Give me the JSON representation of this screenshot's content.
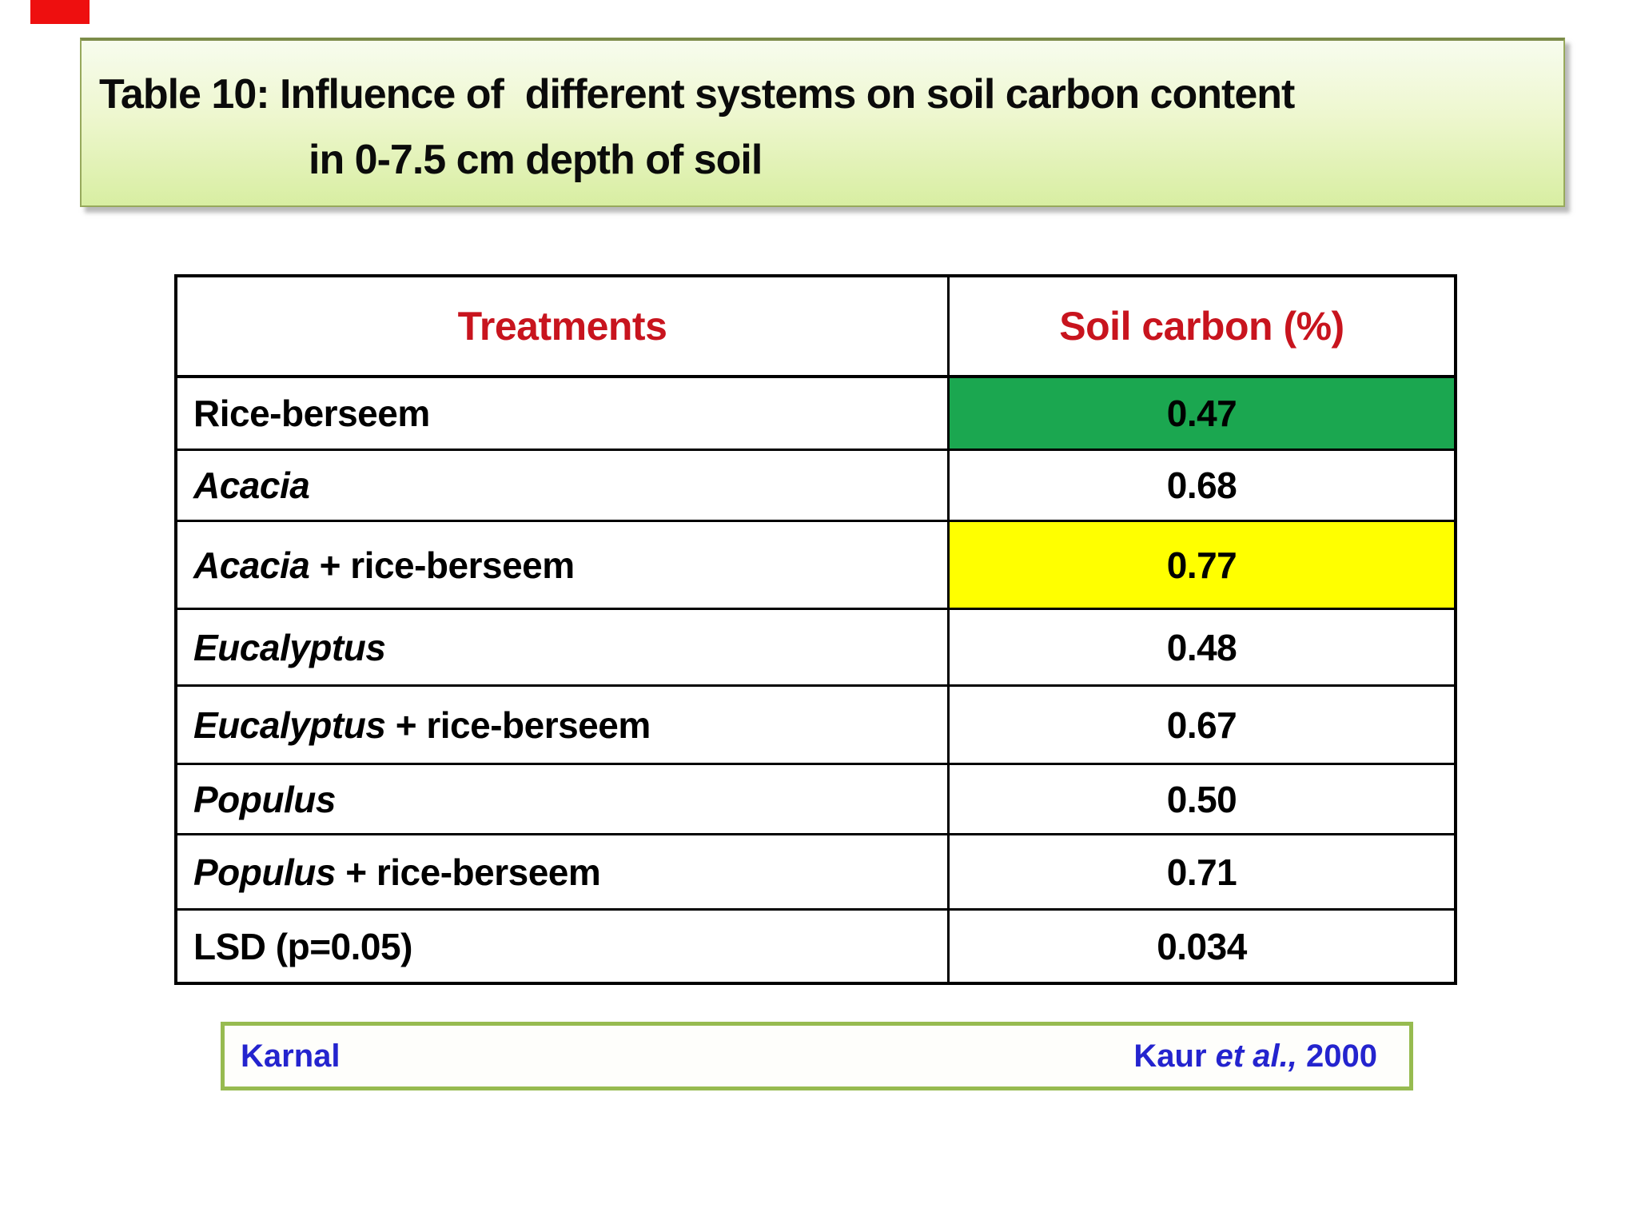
{
  "marker": {
    "present": true
  },
  "title_box": {
    "line1": "Table 10: Influence of  different systems on soil carbon content",
    "line2": "in 0-7.5 cm depth of soil"
  },
  "table": {
    "headers": [
      "Treatments",
      "Soil carbon (%)"
    ],
    "rows": [
      {
        "italic": "",
        "rest": "Rice-berseem",
        "value": "0.47",
        "highlight": "green"
      },
      {
        "italic": "Acacia",
        "rest": "",
        "value": "0.68",
        "highlight": "none"
      },
      {
        "italic": "Acacia",
        "rest": " + rice-berseem",
        "value": "0.77",
        "highlight": "yellow"
      },
      {
        "italic": "Eucalyptus",
        "rest": "",
        "value": "0.48",
        "highlight": "none"
      },
      {
        "italic": "Eucalyptus",
        "rest": " + rice-berseem",
        "value": "0.67",
        "highlight": "none"
      },
      {
        "italic": "Populus",
        "rest": "",
        "value": "0.50",
        "highlight": "none"
      },
      {
        "italic": "Populus",
        "rest": " + rice-berseem",
        "value": "0.71",
        "highlight": "none"
      },
      {
        "italic": "",
        "rest": "LSD (p=0.05)",
        "value": "0.034",
        "highlight": "none"
      }
    ]
  },
  "citation": {
    "location": "Karnal",
    "ref_prefix": "Kaur ",
    "ref_italic": "et al.,",
    "ref_suffix": " 2000"
  },
  "colors": {
    "header_text_red": "#c8141e",
    "highlight_green": "#1ba750",
    "highlight_yellow": "#ffff00",
    "citation_text_blue": "#2424ce",
    "citation_border_green": "#97bb50",
    "title_box_gradient_top": "#f7fcee",
    "title_box_gradient_bottom": "#d8eea2",
    "title_box_border": "#97a95c",
    "table_border": "#000000",
    "marker_red": "#ee0f0f"
  },
  "chart_data": {
    "type": "table",
    "title": "Table 10: Influence of different systems on soil carbon content in 0-7.5 cm depth of soil",
    "columns": [
      "Treatments",
      "Soil carbon (%)"
    ],
    "rows": [
      [
        "Rice-berseem",
        0.47
      ],
      [
        "Acacia",
        0.68
      ],
      [
        "Acacia + rice-berseem",
        0.77
      ],
      [
        "Eucalyptus",
        0.48
      ],
      [
        "Eucalyptus + rice-berseem",
        0.67
      ],
      [
        "Populus",
        0.5
      ],
      [
        "Populus + rice-berseem",
        0.71
      ],
      [
        "LSD (p=0.05)",
        0.034
      ]
    ],
    "source": "Kaur et al., 2000",
    "location": "Karnal"
  }
}
